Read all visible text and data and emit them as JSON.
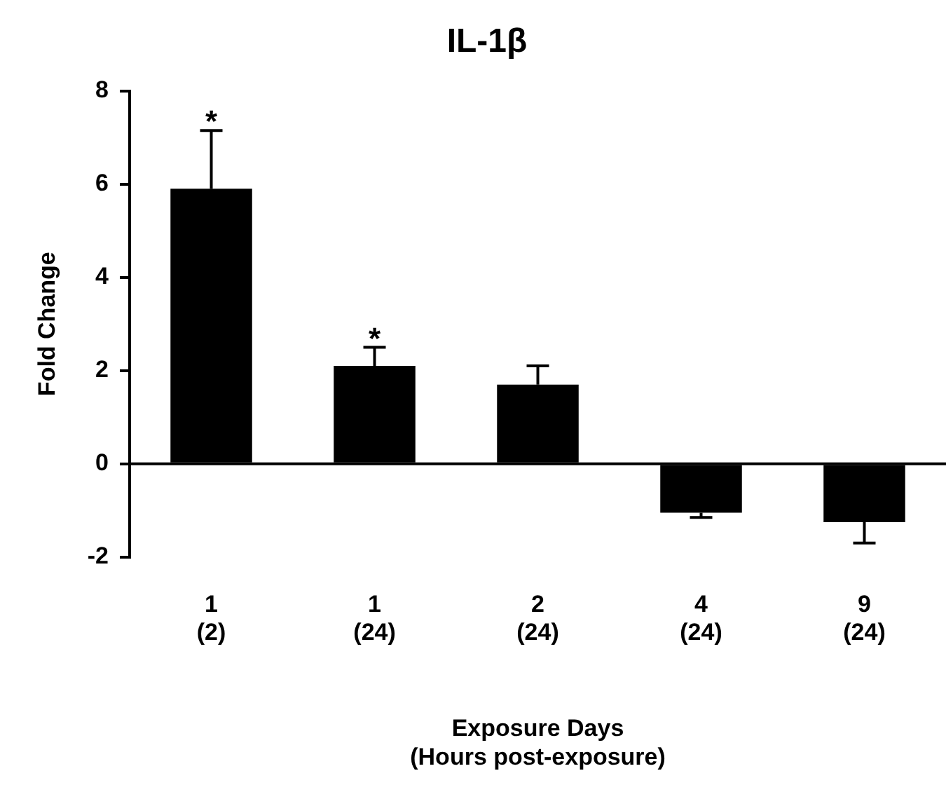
{
  "chart_data": {
    "type": "bar",
    "title": "IL-1β",
    "xlabel": "Exposure Days\n(Hours post-exposure)",
    "ylabel": "Fold Change",
    "categories": [
      "1\n(2)",
      "1\n(24)",
      "2\n(24)",
      "4\n(24)",
      "9\n(24)"
    ],
    "values": [
      5.9,
      2.1,
      1.7,
      -1.05,
      -1.25
    ],
    "color": "#000000",
    "errors": [
      [
        5.9,
        7.15
      ],
      [
        2.1,
        2.5
      ],
      [
        1.7,
        2.1
      ],
      [
        -1.15,
        -1.05
      ],
      [
        -1.7,
        -1.25
      ]
    ],
    "ylim": [
      -2,
      8
    ],
    "yticks": [
      -2,
      0,
      2,
      4,
      6,
      8
    ],
    "legend": false,
    "annotations": [
      {
        "text": "*",
        "x": "1\n(2)",
        "y": 7.15
      },
      {
        "text": "*",
        "x": "1\n(24)",
        "y": 2.5
      }
    ]
  }
}
